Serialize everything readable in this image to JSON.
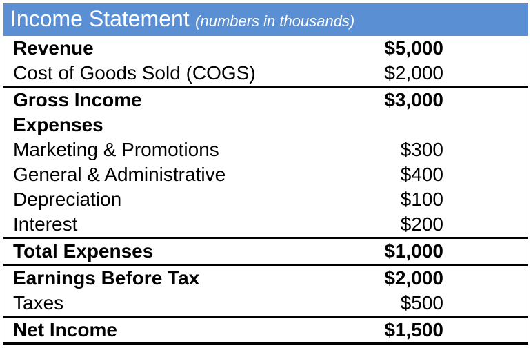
{
  "header": {
    "title": "Income Statement",
    "subtitle": "(numbers in thousands)",
    "bg_color": "#5a8fd4",
    "text_color": "#ffffff"
  },
  "rows": [
    {
      "label": "Revenue",
      "value": "$5,000",
      "bold": true,
      "border_top": false,
      "border_bottom": false
    },
    {
      "label": "Cost of Goods Sold (COGS)",
      "value": "$2,000",
      "bold": false,
      "border_top": false,
      "border_bottom": true
    },
    {
      "label": "Gross Income",
      "value": "$3,000",
      "bold": true,
      "border_top": false,
      "border_bottom": false
    },
    {
      "label": "Expenses",
      "value": "",
      "bold": true,
      "border_top": false,
      "border_bottom": false
    },
    {
      "label": "Marketing & Promotions",
      "value": "$300",
      "bold": false,
      "border_top": false,
      "border_bottom": false
    },
    {
      "label": "General & Administrative",
      "value": "$400",
      "bold": false,
      "border_top": false,
      "border_bottom": false
    },
    {
      "label": "Depreciation",
      "value": "$100",
      "bold": false,
      "border_top": false,
      "border_bottom": false
    },
    {
      "label": "Interest",
      "value": "$200",
      "bold": false,
      "border_top": false,
      "border_bottom": true
    },
    {
      "label": "Total Expenses",
      "value": "$1,000",
      "bold": true,
      "border_top": false,
      "border_bottom": true
    },
    {
      "label": "Earnings Before Tax",
      "value": "$2,000",
      "bold": true,
      "border_top": false,
      "border_bottom": false
    },
    {
      "label": "Taxes",
      "value": "$500",
      "bold": false,
      "border_top": false,
      "border_bottom": true
    },
    {
      "label": "Net Income",
      "value": "$1,500",
      "bold": true,
      "border_top": false,
      "border_bottom": true
    }
  ],
  "style": {
    "label_fontsize": 28,
    "value_fontsize": 28,
    "header_title_fontsize": 32,
    "header_subtitle_fontsize": 22,
    "border_color": "#000000",
    "background_color": "#ffffff",
    "text_color": "#000000"
  }
}
